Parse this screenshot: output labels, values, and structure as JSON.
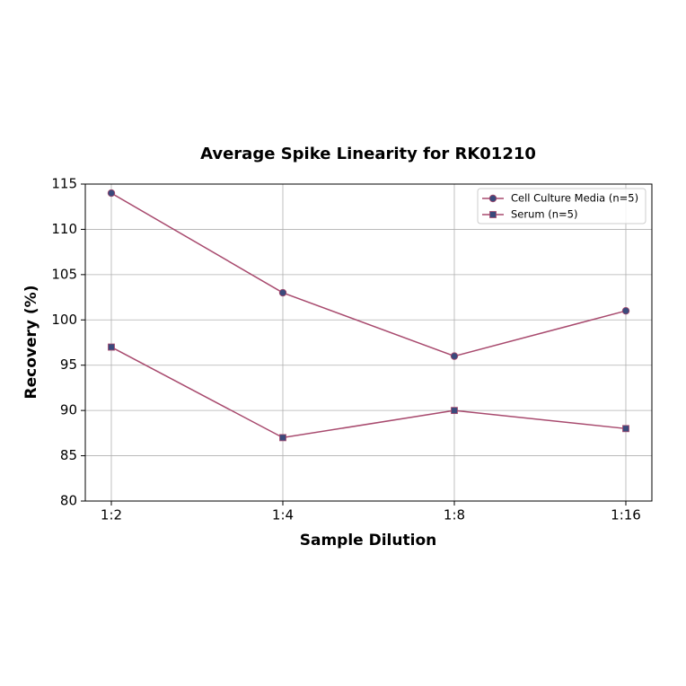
{
  "chart_data": {
    "type": "line",
    "title": "Average Spike Linearity for RK01210",
    "x_label": "Sample Dilution",
    "y_label": "Recovery (%)",
    "categories": [
      "1:2",
      "1:4",
      "1:8",
      "1:16"
    ],
    "series": [
      {
        "name": "Cell Culture Media (n=5)",
        "color": "#a84a6e",
        "marker_color": "#3b4a7c",
        "marker": "circle",
        "values": [
          114,
          103,
          96,
          101
        ]
      },
      {
        "name": "Serum (n=5)",
        "color": "#a84a6e",
        "marker_color": "#3b4a7c",
        "marker": "square",
        "values": [
          97,
          87,
          90,
          88
        ]
      }
    ],
    "ylim": [
      80,
      115
    ],
    "yticks": [
      80,
      85,
      90,
      95,
      100,
      105,
      110,
      115
    ],
    "grid": true,
    "legend": "upper right"
  }
}
